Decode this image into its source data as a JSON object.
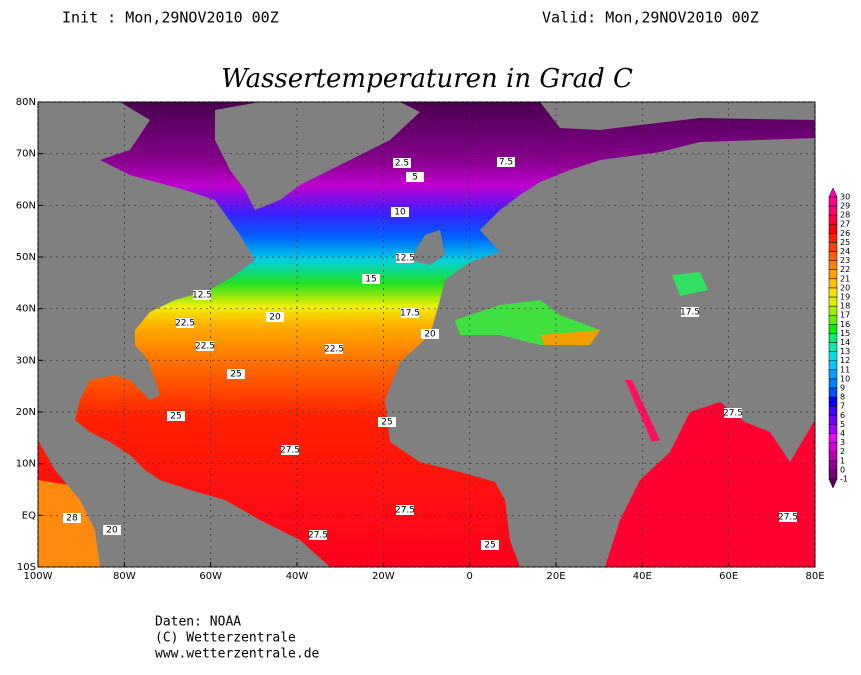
{
  "header": {
    "init": "Init : Mon,29NOV2010 00Z",
    "valid": "Valid: Mon,29NOV2010 00Z"
  },
  "title": "Wassertemperaturen in Grad C",
  "map": {
    "xlim": [
      -100,
      80
    ],
    "ylim": [
      -10,
      80
    ],
    "xticks": [
      {
        "value": -100,
        "label": "100W"
      },
      {
        "value": -80,
        "label": "80W"
      },
      {
        "value": -60,
        "label": "60W"
      },
      {
        "value": -40,
        "label": "40W"
      },
      {
        "value": -20,
        "label": "20W"
      },
      0,
      {
        "value": 20,
        "label": "20E"
      },
      {
        "value": 40,
        "label": "40E"
      },
      {
        "value": 60,
        "label": "60E"
      },
      {
        "value": 80,
        "label": "80E"
      }
    ],
    "yticks": [
      {
        "value": -10,
        "label": "10S"
      },
      {
        "value": 0,
        "label": "EQ"
      },
      {
        "value": 10,
        "label": "10N"
      },
      {
        "value": 20,
        "label": "20N"
      },
      {
        "value": 30,
        "label": "30N"
      },
      {
        "value": 40,
        "label": "40N"
      },
      {
        "value": 50,
        "label": "50N"
      },
      {
        "value": 60,
        "label": "60N"
      },
      {
        "value": 70,
        "label": "70N"
      },
      {
        "value": 80,
        "label": "80N"
      }
    ],
    "grid": true,
    "contour_labels": [
      22.5,
      22.5,
      25,
      22.5,
      20,
      20,
      17.5,
      15,
      12.5,
      10,
      7.5,
      5,
      2.5,
      25,
      27.5,
      27.5,
      27.5,
      25,
      27.5,
      27.5,
      28,
      20,
      25,
      12.5,
      17.5
    ]
  },
  "colorbar": {
    "levels": [
      -1,
      0,
      1,
      2,
      3,
      4,
      5,
      6,
      7,
      8,
      9,
      10,
      11,
      12,
      13,
      14,
      15,
      16,
      17,
      18,
      19,
      20,
      21,
      22,
      23,
      24,
      25,
      26,
      27,
      28,
      29,
      30
    ],
    "colors": [
      "#500050",
      "#700070",
      "#900090",
      "#b000b0",
      "#d000d0",
      "#f000f0",
      "#a000ff",
      "#7000ff",
      "#4000ff",
      "#0000ff",
      "#0050ff",
      "#0080ff",
      "#00a0ff",
      "#00c8ff",
      "#00e0e0",
      "#00f0b0",
      "#00f070",
      "#00f000",
      "#60f000",
      "#a0f000",
      "#e0f000",
      "#ffe000",
      "#ffc000",
      "#ffa000",
      "#ff8000",
      "#ff6000",
      "#ff4000",
      "#ff2000",
      "#ff0000",
      "#ff0040",
      "#ff0070",
      "#ff0090",
      "#ff00b0"
    ]
  },
  "footer": {
    "source": "Daten: NOAA",
    "copyright": "(C) Wetterzentrale",
    "url": "www.wetterzentrale.de"
  }
}
